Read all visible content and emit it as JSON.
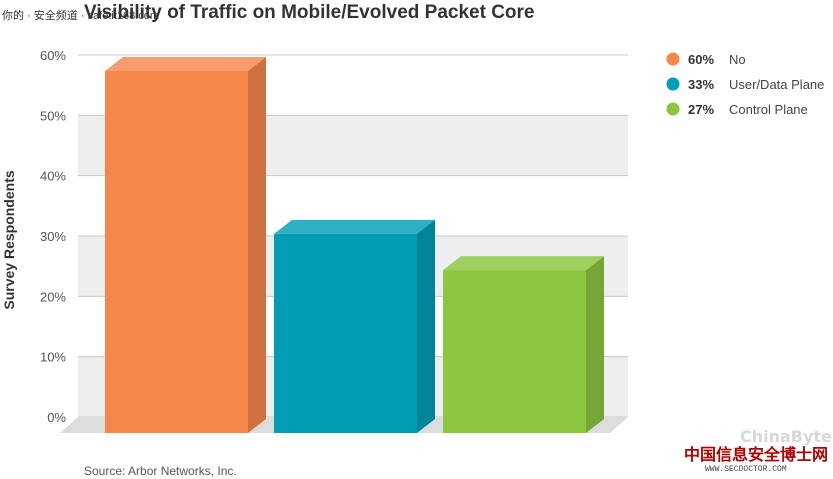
{
  "watermark_top": "你的 · 安全频道 · safe.it168.com",
  "watermark_bottom": {
    "logo": "ChinaByte",
    "site_name": "中国信息安全博士网",
    "url": "WWW.SECDOCTOR.COM"
  },
  "colors": {
    "No": "#f5874a",
    "User/Data Plane": "#009db5",
    "Control Plane": "#8cc63f"
  },
  "chart_data": {
    "type": "bar",
    "title": "Visibility of Traffic on Mobile/Evolved Packet Core",
    "ylabel": "Survey Respondents",
    "xlabel": "",
    "source": "Source: Arbor Networks, Inc.",
    "categories": [
      "No",
      "User/Data Plane",
      "Control Plane"
    ],
    "values": [
      60,
      33,
      27
    ],
    "value_labels": [
      "60%",
      "33%",
      "27%"
    ],
    "ylim": [
      0,
      60
    ],
    "yticks": [
      "0%",
      "10%",
      "20%",
      "30%",
      "40%",
      "50%",
      "60%"
    ],
    "style": "3d",
    "grid": true,
    "legend_position": "top-right"
  }
}
